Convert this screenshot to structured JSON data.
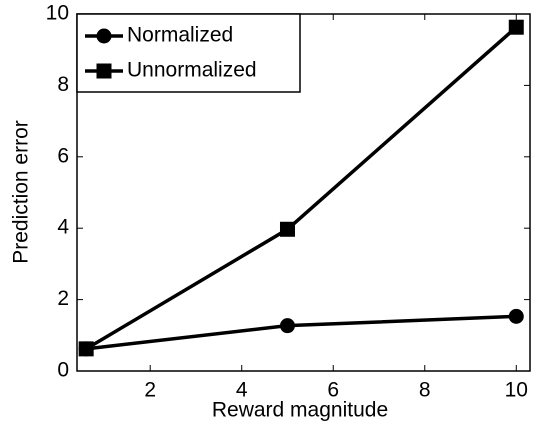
{
  "chart_data": {
    "type": "line",
    "xlabel": "Reward magnitude",
    "ylabel": "Prediction error",
    "x": [
      0.6,
      5,
      10
    ],
    "series": [
      {
        "name": "Normalized",
        "color": "#000000",
        "marker": "circle",
        "values": [
          0.62,
          1.27,
          1.53
        ]
      },
      {
        "name": "Unnormalized",
        "color": "#000000",
        "marker": "square",
        "values": [
          0.62,
          3.97,
          9.63
        ]
      }
    ],
    "xlim": [
      0.4,
      10.3
    ],
    "ylim": [
      0,
      10
    ],
    "xticks": [
      2,
      4,
      6,
      8,
      10
    ],
    "yticks": [
      0,
      2,
      4,
      6,
      8,
      10
    ],
    "legend": "upper left"
  }
}
